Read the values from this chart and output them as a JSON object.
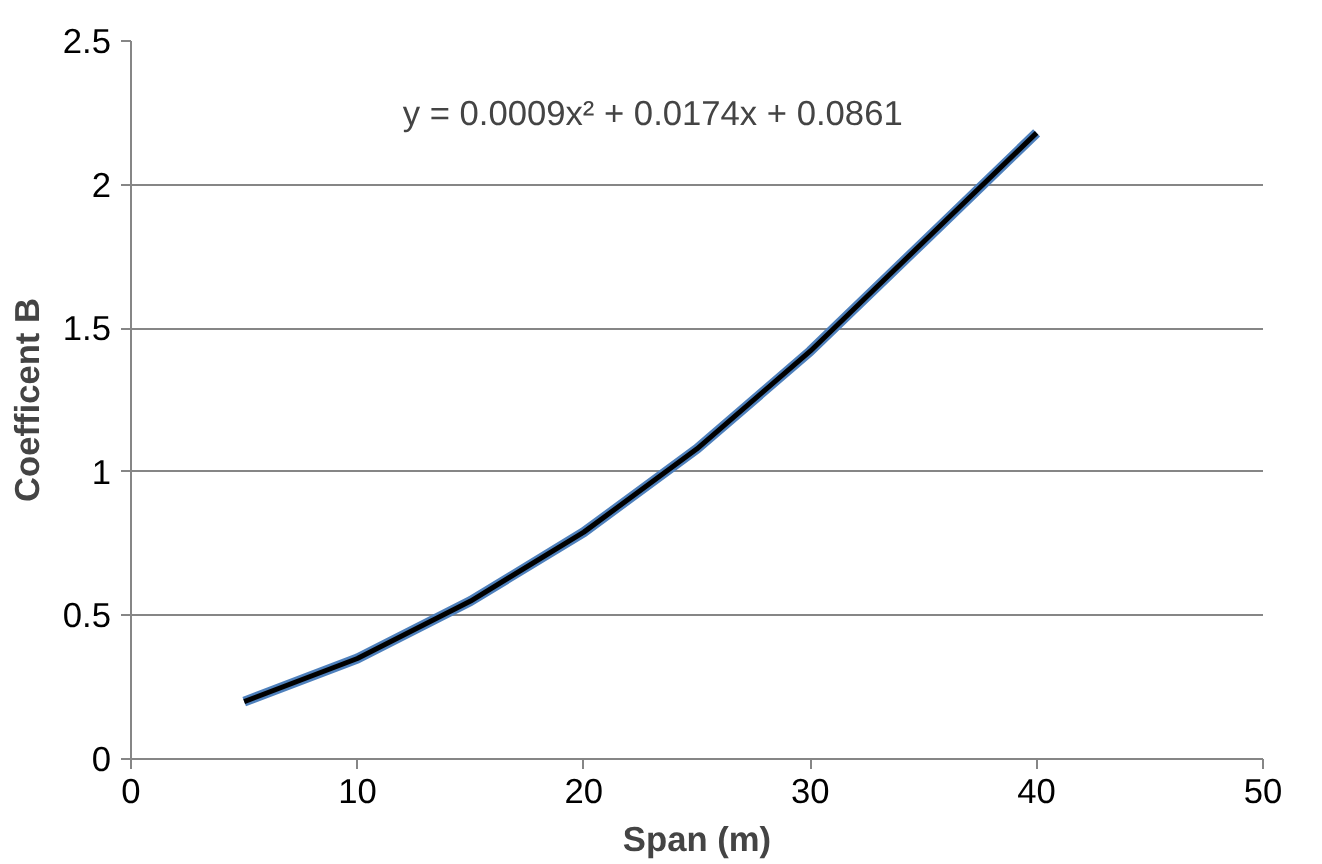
{
  "chart_data": {
    "type": "line",
    "xlabel": "Span (m)",
    "ylabel": "Coefficent B",
    "xlim": [
      0,
      50
    ],
    "xticks": [
      0,
      10,
      20,
      30,
      40,
      50
    ],
    "ylim": [
      0,
      2.5
    ],
    "yticks": [
      0,
      0.5,
      1,
      1.5,
      2,
      2.5
    ],
    "grid": "y",
    "marker": "none",
    "line_style": "solid",
    "series": [
      {
        "color": "#4f81bd",
        "x": [
          5,
          10,
          15,
          20,
          25,
          30,
          35,
          40
        ],
        "values": [
          0.2,
          0.35,
          0.55,
          0.79,
          1.08,
          1.42,
          1.8,
          2.18
        ]
      },
      {
        "type": "line",
        "color": "#000000",
        "x": [
          5,
          10,
          15,
          20,
          25,
          30,
          35,
          40
        ],
        "values": [
          0.2,
          0.35,
          0.55,
          0.79,
          1.08,
          1.42,
          1.8,
          2.18
        ]
      }
    ],
    "annotations": [
      "y = 0.0009x² + 0.0174x + 0.0861"
    ]
  }
}
